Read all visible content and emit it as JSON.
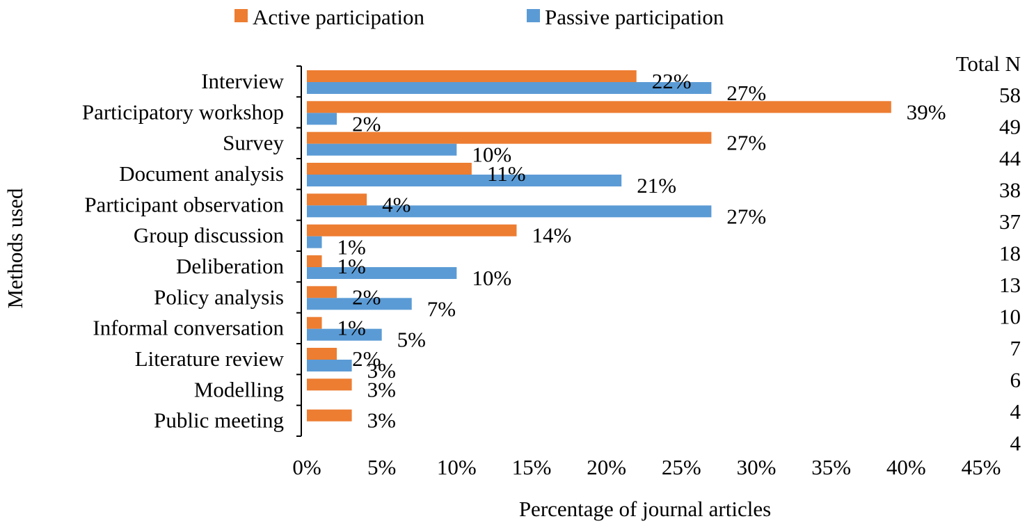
{
  "chart_data": {
    "type": "bar",
    "orientation": "horizontal",
    "title": "",
    "xlabel": "Percentage of journal articles",
    "ylabel": "Methods used",
    "xlim": [
      0,
      45
    ],
    "x_ticks": [
      0,
      5,
      10,
      15,
      20,
      25,
      30,
      35,
      40,
      45
    ],
    "x_tick_labels": [
      "0%",
      "5%",
      "10%",
      "15%",
      "20%",
      "25%",
      "30%",
      "35%",
      "40%",
      "45%"
    ],
    "grid": false,
    "legend_position": "top",
    "categories": [
      "Interview",
      "Participatory workshop",
      "Survey",
      "Document analysis",
      "Participant observation",
      "Group discussion",
      "Deliberation",
      "Policy analysis",
      "Informal conversation",
      "Literature review",
      "Modelling",
      "Public meeting"
    ],
    "series": [
      {
        "name": "Active participation",
        "color": "#ED7D31",
        "values": [
          22,
          39,
          27,
          11,
          4,
          14,
          1,
          2,
          1,
          2,
          3,
          3
        ],
        "labels": [
          "22%",
          "39%",
          "27%",
          "11%",
          "4%",
          "14%",
          "1%",
          "2%",
          "1%",
          "2%",
          "3%",
          "3%"
        ]
      },
      {
        "name": "Passive participation",
        "color": "#5B9BD5",
        "values": [
          27,
          2,
          10,
          21,
          27,
          1,
          10,
          7,
          5,
          3,
          null,
          null
        ],
        "labels": [
          "27%",
          "2%",
          "10%",
          "21%",
          "27%",
          "1%",
          "10%",
          "7%",
          "5%",
          "3%",
          null,
          null
        ]
      }
    ],
    "total_n_header": "Total N",
    "total_n": [
      "58",
      "49",
      "44",
      "38",
      "37",
      "18",
      "13",
      "10",
      "7",
      "6",
      "4",
      "4"
    ]
  }
}
